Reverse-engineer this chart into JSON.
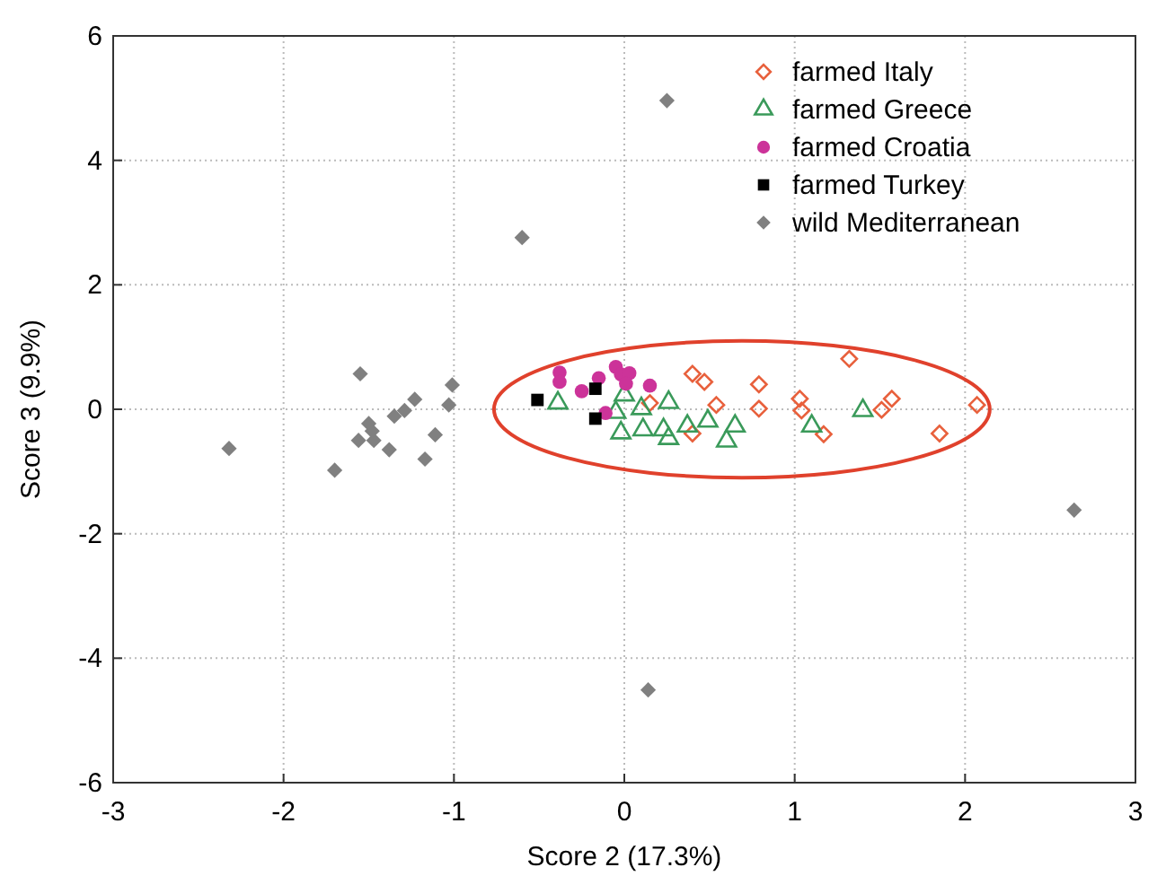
{
  "chart_data": {
    "type": "scatter",
    "xlabel": "Score 2 (17.3%)",
    "ylabel": "Score 3 (9.9%)",
    "xlim": [
      -3,
      3
    ],
    "ylim": [
      -6,
      6
    ],
    "xticks": [
      -3,
      -2,
      -1,
      0,
      1,
      2,
      3
    ],
    "yticks": [
      -6,
      -4,
      -2,
      0,
      2,
      4,
      6
    ],
    "grid": true,
    "legend": "top right",
    "series": [
      {
        "name": "farmed Italy",
        "color": "#e8603c",
        "marker": "diamond-open",
        "x": [
          1.32,
          0.4,
          0.47,
          0.15,
          0.4,
          0.54,
          0.79,
          0.79,
          1.03,
          1.04,
          1.17,
          1.51,
          1.57,
          1.85,
          2.07
        ],
        "values": [
          0.81,
          0.57,
          0.44,
          0.1,
          -0.39,
          0.07,
          0.4,
          0.01,
          0.17,
          -0.02,
          -0.4,
          -0.01,
          0.17,
          -0.39,
          0.07
        ]
      },
      {
        "name": "farmed Greece",
        "color": "#3a9a5a",
        "marker": "triangle-open",
        "x": [
          -0.39,
          0.0,
          -0.05,
          0.1,
          0.26,
          -0.02,
          0.11,
          0.23,
          0.26,
          0.37,
          0.49,
          0.6,
          0.65,
          1.1,
          1.4
        ],
        "values": [
          0.1,
          0.23,
          -0.05,
          0.01,
          0.11,
          -0.38,
          -0.33,
          -0.33,
          -0.47,
          -0.27,
          -0.19,
          -0.51,
          -0.27,
          -0.27,
          -0.02
        ]
      },
      {
        "name": "farmed Croatia",
        "color": "#cc3399",
        "marker": "circle",
        "x": [
          -0.38,
          -0.38,
          -0.25,
          -0.15,
          -0.05,
          -0.02,
          0.03,
          0.01,
          0.15,
          -0.11
        ],
        "values": [
          0.59,
          0.44,
          0.29,
          0.5,
          0.68,
          0.56,
          0.58,
          0.41,
          0.38,
          -0.06
        ]
      },
      {
        "name": "farmed Turkey",
        "color": "#000000",
        "marker": "square",
        "x": [
          -0.51,
          -0.17,
          -0.17
        ],
        "values": [
          0.15,
          0.33,
          -0.15
        ]
      },
      {
        "name": "wild Mediterranean",
        "color": "#808080",
        "marker": "diamond",
        "x": [
          -2.32,
          -1.7,
          -1.55,
          -1.56,
          -1.5,
          -1.48,
          -1.47,
          -1.38,
          -1.35,
          -1.29,
          -1.23,
          -1.17,
          -1.11,
          -1.03,
          -1.01,
          -0.6,
          0.25,
          0.14,
          2.64
        ],
        "values": [
          -0.63,
          -0.98,
          0.57,
          -0.5,
          -0.23,
          -0.35,
          -0.5,
          -0.65,
          -0.11,
          -0.02,
          0.16,
          -0.8,
          -0.41,
          0.07,
          0.39,
          2.76,
          4.96,
          -4.51,
          -1.62
        ]
      }
    ]
  }
}
